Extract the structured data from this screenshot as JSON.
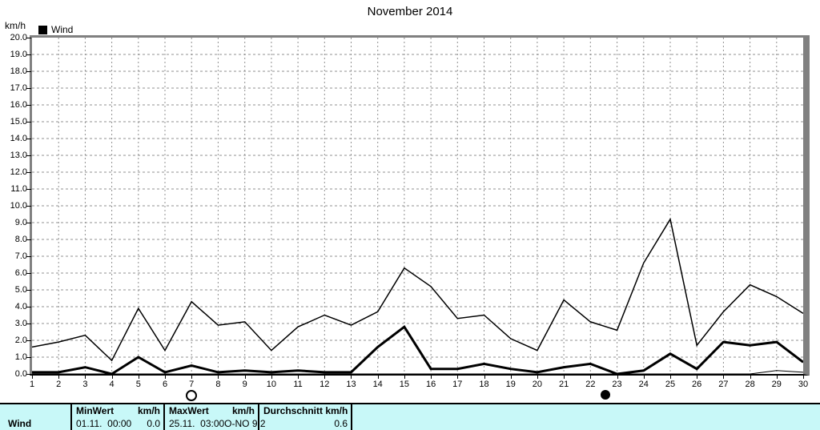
{
  "title": "November 2014",
  "legend": {
    "label": "Wind",
    "marker_color": "#000000"
  },
  "colors": {
    "frame": "#808080",
    "grid": "#909090",
    "line": "#000000",
    "table_background": "#C8F8F8"
  },
  "chart_data": {
    "type": "line",
    "title": "November 2014",
    "ylabel": "km/h",
    "ylim": [
      0,
      20
    ],
    "ytick_step": 1.0,
    "grid": true,
    "legend_position": "top-left",
    "x": [
      1,
      2,
      3,
      4,
      5,
      6,
      7,
      8,
      9,
      10,
      11,
      12,
      13,
      14,
      15,
      16,
      17,
      18,
      19,
      20,
      21,
      22,
      23,
      24,
      25,
      26,
      27,
      28,
      29,
      30
    ],
    "xticks": [
      "1",
      "2",
      "3",
      "4",
      "5",
      "6",
      "7",
      "8",
      "9",
      "10",
      "11",
      "12",
      "13",
      "14",
      "15",
      "16",
      "17",
      "18",
      "19",
      "20",
      "21",
      "22",
      "23",
      "24",
      "25",
      "26",
      "27",
      "28",
      "29",
      "30"
    ],
    "yticks": [
      "20.0",
      "19.0",
      "18.0",
      "17.0",
      "16.0",
      "15.0",
      "14.0",
      "13.0",
      "12.0",
      "11.0",
      "10.0",
      "9.0",
      "8.0",
      "7.0",
      "6.0",
      "5.0",
      "4.0",
      "3.0",
      "2.0",
      "1.0",
      "0.0"
    ],
    "series": [
      {
        "name": "Wind Maximum",
        "style": "thin",
        "values": [
          1.6,
          1.9,
          2.3,
          0.8,
          3.9,
          1.4,
          4.3,
          2.9,
          3.1,
          1.4,
          2.8,
          3.5,
          2.9,
          3.7,
          6.3,
          5.2,
          3.3,
          3.5,
          2.1,
          1.4,
          4.4,
          3.1,
          2.6,
          6.6,
          9.2,
          1.7,
          3.7,
          5.3,
          4.6,
          3.6
        ]
      },
      {
        "name": "Wind Durchschnitt",
        "style": "thick",
        "values": [
          0.1,
          0.1,
          0.4,
          0.0,
          1.0,
          0.1,
          0.5,
          0.1,
          0.2,
          0.1,
          0.2,
          0.1,
          0.1,
          1.6,
          2.8,
          0.3,
          0.3,
          0.6,
          0.3,
          0.1,
          0.4,
          0.6,
          0.0,
          0.2,
          1.2,
          0.3,
          1.9,
          1.7,
          1.9,
          0.7
        ]
      },
      {
        "name": "Wind Minimum",
        "style": "hair",
        "values": [
          0.0,
          0.0,
          0.0,
          0.0,
          0.0,
          0.0,
          0.0,
          0.0,
          0.0,
          0.0,
          0.0,
          0.0,
          0.0,
          0.0,
          0.0,
          0.0,
          0.0,
          0.0,
          0.0,
          0.0,
          0.0,
          0.0,
          0.0,
          0.0,
          0.0,
          0.0,
          0.0,
          0.0,
          0.2,
          0.1
        ]
      }
    ],
    "annotations": [
      {
        "symbol": "full-moon",
        "day": 7
      },
      {
        "symbol": "new-moon",
        "day": 22.55
      }
    ]
  },
  "summary_table": {
    "row_label": "Wind",
    "min": {
      "header": "MinWert",
      "unit": "km/h",
      "value": "01.11.  00:00",
      "value_num": "0.0"
    },
    "max": {
      "header": "MaxWert",
      "unit": "km/h",
      "value": "25.11.  03:00",
      "value_num": "O-NO 9.2"
    },
    "avg": {
      "header": "Durchschnitt km/h",
      "value_num": "0.6"
    }
  }
}
